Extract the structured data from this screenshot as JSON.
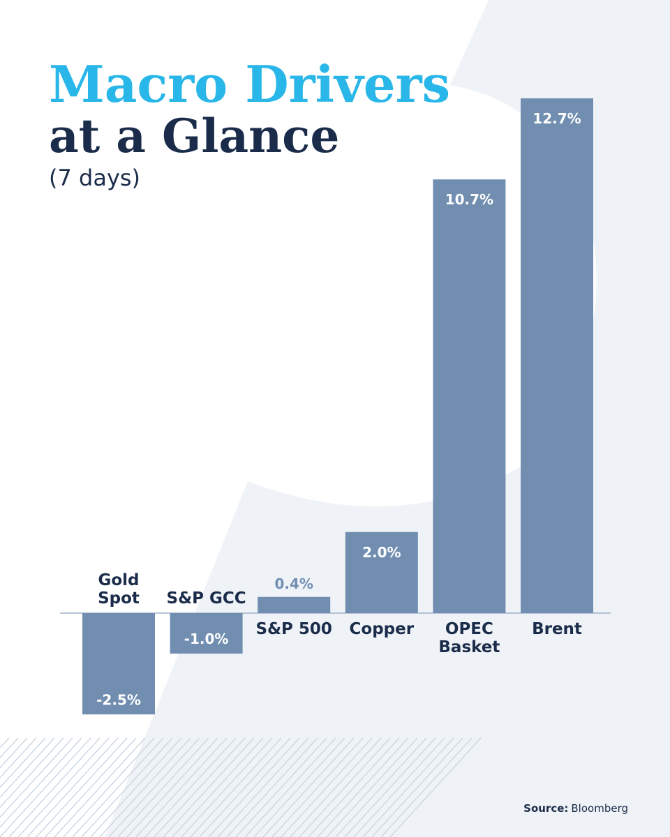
{
  "title": {
    "line1": "Macro Drivers",
    "line2": "at a Glance",
    "subtitle": "(7 days)"
  },
  "source": {
    "label": "Source:",
    "value": "Bloomberg"
  },
  "colors": {
    "title_accent": "#29B6E8",
    "title_dark": "#1B2C4A",
    "bar": "#718EB1",
    "bg_shape": "#EFF3F7",
    "hatch": "#C9D4DF",
    "baseline": "#9FB2C8",
    "value_outside": "#718EB1"
  },
  "chart_data": {
    "type": "bar",
    "title": "Macro Drivers at a Glance",
    "subtitle": "(7 days)",
    "categories": [
      "Gold Spot",
      "S&P GCC",
      "S&P 500",
      "Copper",
      "OPEC Basket",
      "Brent"
    ],
    "category_lines": [
      [
        "Gold",
        "Spot"
      ],
      [
        "S&P GCC"
      ],
      [
        "S&P 500"
      ],
      [
        "Copper"
      ],
      [
        "OPEC",
        "Basket"
      ],
      [
        "Brent"
      ]
    ],
    "values": [
      -2.5,
      -1.0,
      0.4,
      2.0,
      10.7,
      12.7
    ],
    "value_labels": [
      "-2.5%",
      "-1.0%",
      "0.4%",
      "2.0%",
      "10.7%",
      "12.7%"
    ],
    "ylim": [
      -2.5,
      12.7
    ],
    "grid": false,
    "legend": "none"
  }
}
